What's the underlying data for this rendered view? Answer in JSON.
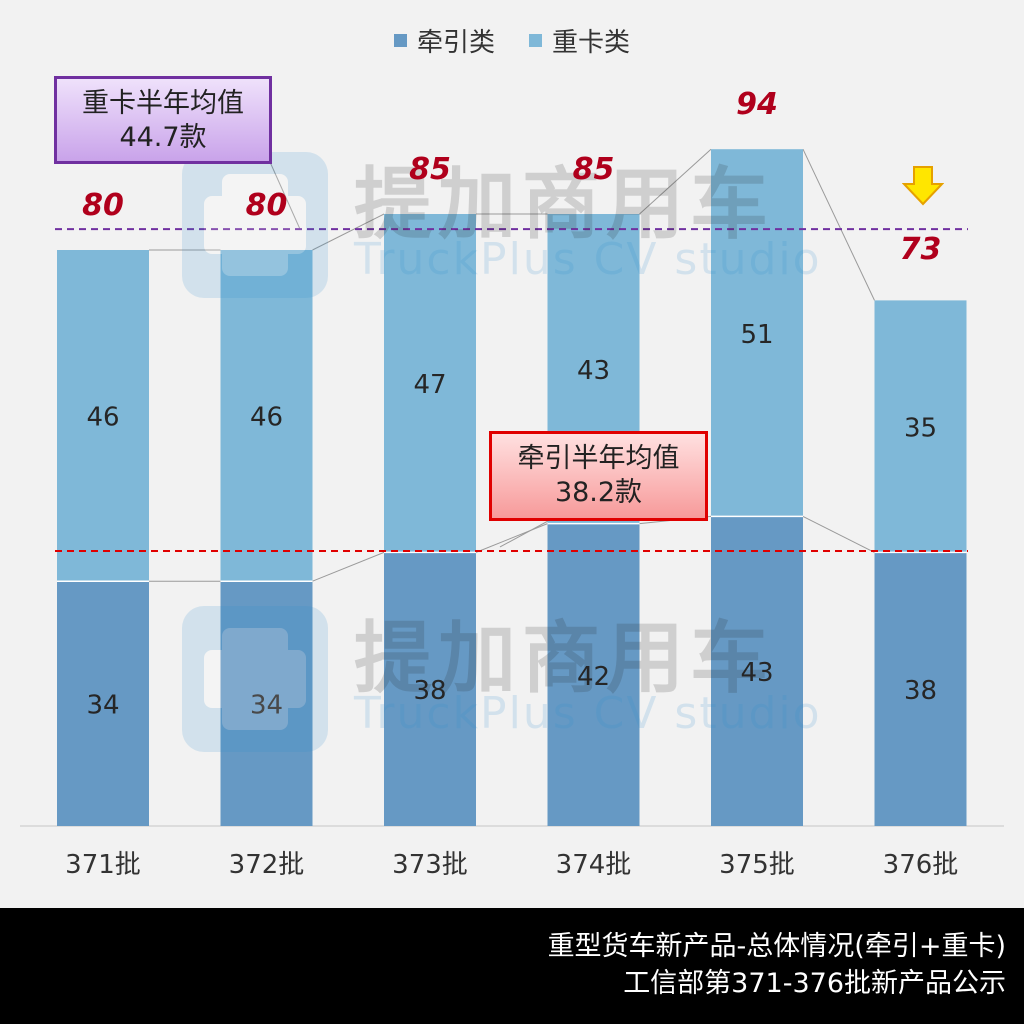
{
  "chart_data": {
    "type": "bar",
    "stacked": true,
    "categories": [
      "371批",
      "372批",
      "373批",
      "374批",
      "375批",
      "376批"
    ],
    "series": [
      {
        "name": "牵引类",
        "values": [
          34,
          34,
          38,
          42,
          43,
          38
        ],
        "color": "#6699c4"
      },
      {
        "name": "重卡类",
        "values": [
          46,
          46,
          47,
          43,
          51,
          35
        ],
        "color": "#7fb8d8"
      }
    ],
    "totals": [
      80,
      80,
      85,
      85,
      94,
      73
    ],
    "ylim": [
      0,
      110
    ],
    "grid": false,
    "legend_position": "top",
    "reference_lines": [
      {
        "series": "重卡类",
        "value": 82.9,
        "color": "#7030a0",
        "label_line1": "重卡半年均值",
        "label_line2": "44.7款"
      },
      {
        "series": "牵引类",
        "value": 38.2,
        "color": "#e00000",
        "label_line1": "牵引半年均值",
        "label_line2": "38.2款"
      }
    ],
    "colors": {
      "total_label": "#b0001c",
      "arrow_fill": "#ffe600",
      "arrow_stroke": "#e6a100"
    }
  },
  "watermark": {
    "cn": "提加商用车",
    "en": "TruckPlus CV studio"
  },
  "footer": {
    "line1": "重型货车新产品-总体情况(牵引+重卡)",
    "line2": "工信部第371-376批新产品公示"
  }
}
